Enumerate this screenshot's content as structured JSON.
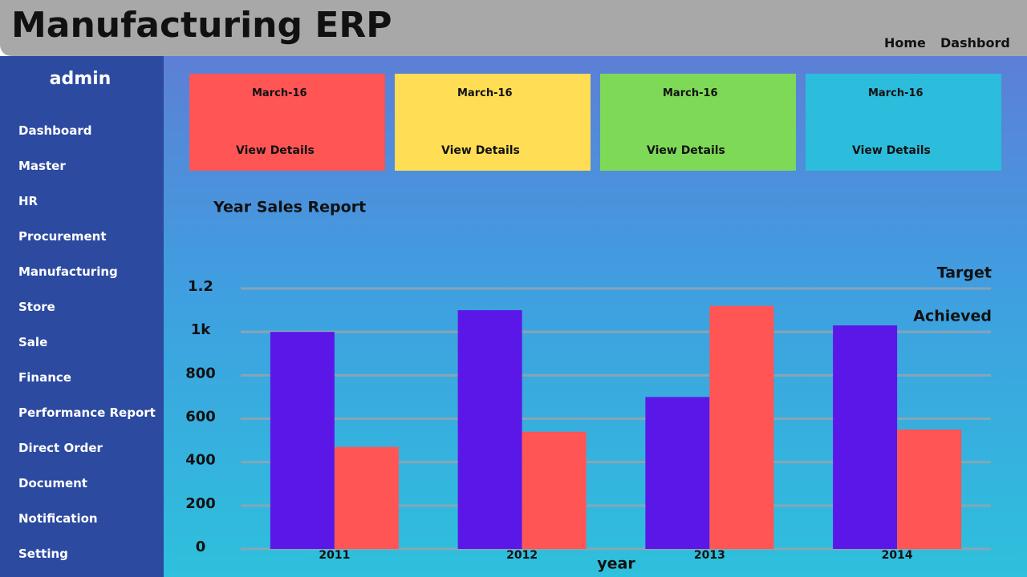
{
  "header": {
    "title": "Manufacturing ERP",
    "nav": [
      "Home",
      "Dashbord"
    ]
  },
  "sidebar": {
    "user": "admin",
    "items": [
      "Dashboard",
      "Master",
      "HR",
      "Procurement",
      "Manufacturing",
      "Store",
      "Sale",
      "Finance",
      "Performance Report",
      "Direct Order",
      "Document",
      "Notification",
      "Setting"
    ]
  },
  "cards": [
    {
      "date": "March-16",
      "link": "View Details",
      "color": "#ff5555"
    },
    {
      "date": "March-16",
      "link": "View Details",
      "color": "#ffdd55"
    },
    {
      "date": "March-16",
      "link": "View Details",
      "color": "#7ed957"
    },
    {
      "date": "March-16",
      "link": "View Details",
      "color": "#2cbcdc"
    }
  ],
  "chart_data": {
    "type": "bar",
    "title": "Year Sales Report",
    "x_label": "year",
    "categories": [
      "2011",
      "2012",
      "2013",
      "2014"
    ],
    "series": [
      {
        "name": "Target",
        "color": "#5b17e8",
        "values": [
          1000,
          1100,
          700,
          1030
        ]
      },
      {
        "name": "Achieved",
        "color": "#ff5555",
        "values": [
          470,
          540,
          1120,
          550
        ]
      }
    ],
    "ylim": [
      0,
      1200
    ],
    "yticks": [
      0,
      200,
      400,
      600,
      800,
      {
        "value": 1000,
        "label": "1k"
      },
      {
        "value": 1200,
        "label": "1.2"
      }
    ],
    "grid": true,
    "legend": "top-right"
  }
}
